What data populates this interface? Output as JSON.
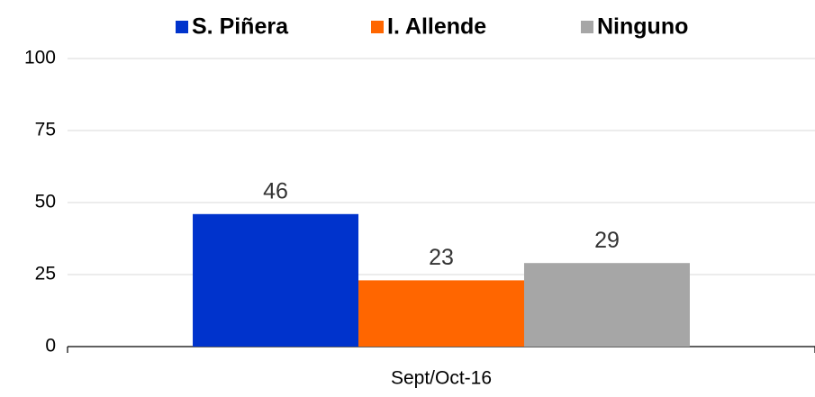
{
  "chart_data": {
    "type": "bar",
    "categories": [
      "Sept/Oct-16"
    ],
    "series": [
      {
        "name": "S. Piñera",
        "color": "#0033cc",
        "values": [
          46
        ]
      },
      {
        "name": "I. Allende",
        "color": "#ff6600",
        "values": [
          23
        ]
      },
      {
        "name": "Ninguno",
        "color": "#a6a6a6",
        "values": [
          29
        ]
      }
    ],
    "ylim": [
      0,
      100
    ],
    "yticks": [
      0,
      25,
      50,
      75,
      100
    ],
    "grid": true,
    "legend": "top"
  }
}
